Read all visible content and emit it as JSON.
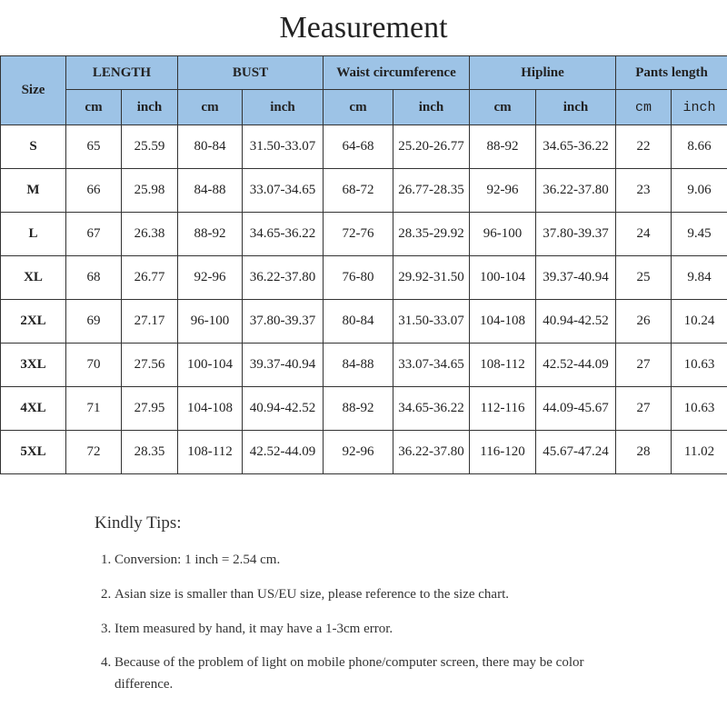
{
  "title": "Measurement",
  "table": {
    "size_header": "Size",
    "groups": [
      "LENGTH",
      "BUST",
      "Waist circumference",
      "Hipline",
      "Pants length"
    ],
    "units": [
      "cm",
      "inch",
      "cm",
      "inch",
      "cm",
      "inch",
      "cm",
      "inch",
      "cm",
      "inch"
    ],
    "rows": [
      [
        "S",
        "65",
        "25.59",
        "80-84",
        "31.50-33.07",
        "64-68",
        "25.20-26.77",
        "88-92",
        "34.65-36.22",
        "22",
        "8.66"
      ],
      [
        "M",
        "66",
        "25.98",
        "84-88",
        "33.07-34.65",
        "68-72",
        "26.77-28.35",
        "92-96",
        "36.22-37.80",
        "23",
        "9.06"
      ],
      [
        "L",
        "67",
        "26.38",
        "88-92",
        "34.65-36.22",
        "72-76",
        "28.35-29.92",
        "96-100",
        "37.80-39.37",
        "24",
        "9.45"
      ],
      [
        "XL",
        "68",
        "26.77",
        "92-96",
        "36.22-37.80",
        "76-80",
        "29.92-31.50",
        "100-104",
        "39.37-40.94",
        "25",
        "9.84"
      ],
      [
        "2XL",
        "69",
        "27.17",
        "96-100",
        "37.80-39.37",
        "80-84",
        "31.50-33.07",
        "104-108",
        "40.94-42.52",
        "26",
        "10.24"
      ],
      [
        "3XL",
        "70",
        "27.56",
        "100-104",
        "39.37-40.94",
        "84-88",
        "33.07-34.65",
        "108-112",
        "42.52-44.09",
        "27",
        "10.63"
      ],
      [
        "4XL",
        "71",
        "27.95",
        "104-108",
        "40.94-42.52",
        "88-92",
        "34.65-36.22",
        "112-116",
        "44.09-45.67",
        "27",
        "10.63"
      ],
      [
        "5XL",
        "72",
        "28.35",
        "108-112",
        "42.52-44.09",
        "92-96",
        "36.22-37.80",
        "116-120",
        "45.67-47.24",
        "28",
        "11.02"
      ]
    ],
    "header_color": "#9dc3e6"
  },
  "tips": {
    "heading": "Kindly Tips:",
    "items": [
      "Conversion: 1 inch = 2.54 cm.",
      "Asian size is smaller than US/EU size, please reference to the size chart.",
      "Item measured by hand, it may have a 1-3cm error.",
      "Because of the problem of light on mobile phone/computer screen, there may be color difference."
    ]
  }
}
